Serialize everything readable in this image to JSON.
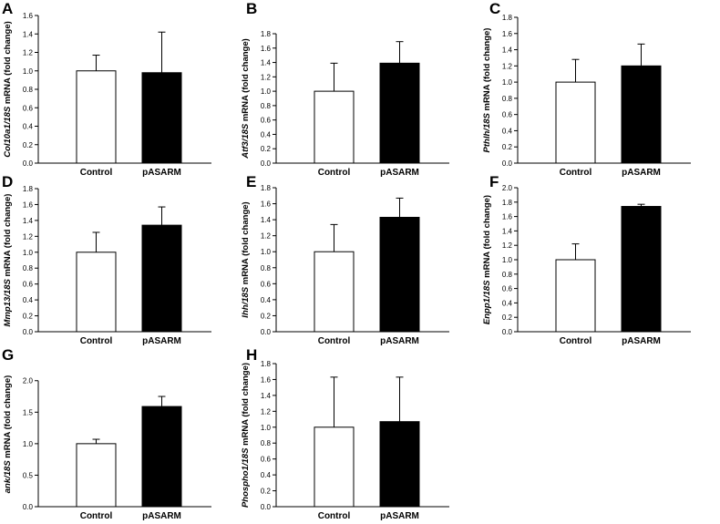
{
  "chart_data": [
    {
      "panel": "A",
      "type": "bar",
      "ylabel": {
        "gene": "Col10a1/18S",
        "rest": " mRNA (fold change)"
      },
      "ylim": [
        0,
        1.6
      ],
      "yticks": [
        0,
        0.2,
        0.4,
        0.6,
        0.8,
        1.0,
        1.2,
        1.4,
        1.6
      ],
      "tick_labels": [
        "0.0",
        "0.2",
        "0.4",
        "0.6",
        "0.8",
        "1.0",
        "1.2",
        "1.4",
        "1.6"
      ],
      "categories": [
        "Control",
        "pASARM"
      ],
      "values": [
        1.0,
        0.98
      ],
      "errors": [
        0.17,
        0.44
      ],
      "colors": [
        "#ffffff",
        "#000000"
      ]
    },
    {
      "panel": "B",
      "type": "bar",
      "ylabel": {
        "gene": "Atf3/18S",
        "rest": " mRNA (fold change)"
      },
      "ylim": [
        0,
        1.8
      ],
      "yticks": [
        0,
        0.2,
        0.4,
        0.6,
        0.8,
        1.0,
        1.2,
        1.4,
        1.6,
        1.8
      ],
      "tick_labels": [
        "0.0",
        "0.2",
        "0.4",
        "0.6",
        "0.8",
        "1.0",
        "1.2",
        "1.4",
        "1.6",
        "1.8"
      ],
      "categories": [
        "Control",
        "pASARM"
      ],
      "values": [
        1.0,
        1.39
      ],
      "errors": [
        0.39,
        0.3
      ],
      "colors": [
        "#ffffff",
        "#000000"
      ]
    },
    {
      "panel": "C",
      "type": "bar",
      "ylabel": {
        "gene": "Pthlh/18S",
        "rest": " mRNA (fold change)"
      },
      "ylim": [
        0,
        1.8
      ],
      "yticks": [
        0,
        0.2,
        0.4,
        0.6,
        0.8,
        1.0,
        1.2,
        1.4,
        1.6,
        1.8
      ],
      "tick_labels": [
        "0.0",
        "0.2",
        "0.4",
        "0.6",
        "0.8",
        "1.0",
        "1.2",
        "1.4",
        "1.6",
        "1.8"
      ],
      "categories": [
        "Control",
        "pASARM"
      ],
      "values": [
        1.0,
        1.2
      ],
      "errors": [
        0.28,
        0.27
      ],
      "colors": [
        "#ffffff",
        "#000000"
      ]
    },
    {
      "panel": "D",
      "type": "bar",
      "ylabel": {
        "gene": "Mmp13/18S",
        "rest": " mRNA (fold change)"
      },
      "ylim": [
        0,
        1.8
      ],
      "yticks": [
        0,
        0.2,
        0.4,
        0.6,
        0.8,
        1.0,
        1.2,
        1.4,
        1.6,
        1.8
      ],
      "tick_labels": [
        "0.0",
        "0.2",
        "0.4",
        "0.6",
        "0.8",
        "1.0",
        "1.2",
        "1.4",
        "1.6",
        "1.8"
      ],
      "categories": [
        "Control",
        "pASARM"
      ],
      "values": [
        1.0,
        1.34
      ],
      "errors": [
        0.25,
        0.23
      ],
      "colors": [
        "#ffffff",
        "#000000"
      ]
    },
    {
      "panel": "E",
      "type": "bar",
      "ylabel": {
        "gene": "Ihh/18S",
        "rest": " mRNA (fold change)"
      },
      "ylim": [
        0,
        1.8
      ],
      "yticks": [
        0,
        0.2,
        0.4,
        0.6,
        0.8,
        1.0,
        1.2,
        1.4,
        1.6,
        1.8
      ],
      "tick_labels": [
        "0.0",
        "0.2",
        "0.4",
        "0.6",
        "0.8",
        "1.0",
        "1.2",
        "1.4",
        "1.6",
        "1.8"
      ],
      "categories": [
        "Control",
        "pASARM"
      ],
      "values": [
        1.0,
        1.43
      ],
      "errors": [
        0.34,
        0.24
      ],
      "colors": [
        "#ffffff",
        "#000000"
      ]
    },
    {
      "panel": "F",
      "type": "bar",
      "ylabel": {
        "gene": "Enpp1/18S",
        "rest": " mRNA (fold change)"
      },
      "ylim": [
        0,
        2.0
      ],
      "yticks": [
        0,
        0.2,
        0.4,
        0.6,
        0.8,
        1.0,
        1.2,
        1.4,
        1.6,
        1.8,
        2.0
      ],
      "tick_labels": [
        "0.0",
        "0.2",
        "0.4",
        "0.6",
        "0.8",
        "1.0",
        "1.2",
        "1.4",
        "1.6",
        "1.8",
        "2.0"
      ],
      "categories": [
        "Control",
        "pASARM"
      ],
      "values": [
        1.0,
        1.74
      ],
      "errors": [
        0.22,
        0.03
      ],
      "colors": [
        "#ffffff",
        "#000000"
      ]
    },
    {
      "panel": "G",
      "type": "bar",
      "ylabel": {
        "gene": "ank/18S",
        "rest": " mRNA (fold change)"
      },
      "ylim": [
        0,
        2.3
      ],
      "yticks": [
        0,
        0.5,
        1.0,
        1.5,
        2.0
      ],
      "tick_labels": [
        "0.0",
        "0.5",
        "1.0",
        "1.5",
        "2.0"
      ],
      "categories": [
        "Control",
        "pASARM"
      ],
      "values": [
        1.0,
        1.59
      ],
      "errors": [
        0.07,
        0.16
      ],
      "colors": [
        "#ffffff",
        "#000000"
      ]
    },
    {
      "panel": "H",
      "type": "bar",
      "ylabel": {
        "gene": "Phospho1/18S",
        "rest": " mRNA (fold change)"
      },
      "ylim": [
        0,
        1.8
      ],
      "yticks": [
        0,
        0.2,
        0.4,
        0.6,
        0.8,
        1.0,
        1.2,
        1.4,
        1.6,
        1.8
      ],
      "tick_labels": [
        "0.0",
        "0.2",
        "0.4",
        "0.6",
        "0.8",
        "1.0",
        "1.2",
        "1.4",
        "1.6",
        "1.8"
      ],
      "categories": [
        "Control",
        "pASARM"
      ],
      "values": [
        1.0,
        1.07
      ],
      "errors": [
        0.63,
        0.56
      ],
      "colors": [
        "#ffffff",
        "#000000"
      ]
    }
  ]
}
